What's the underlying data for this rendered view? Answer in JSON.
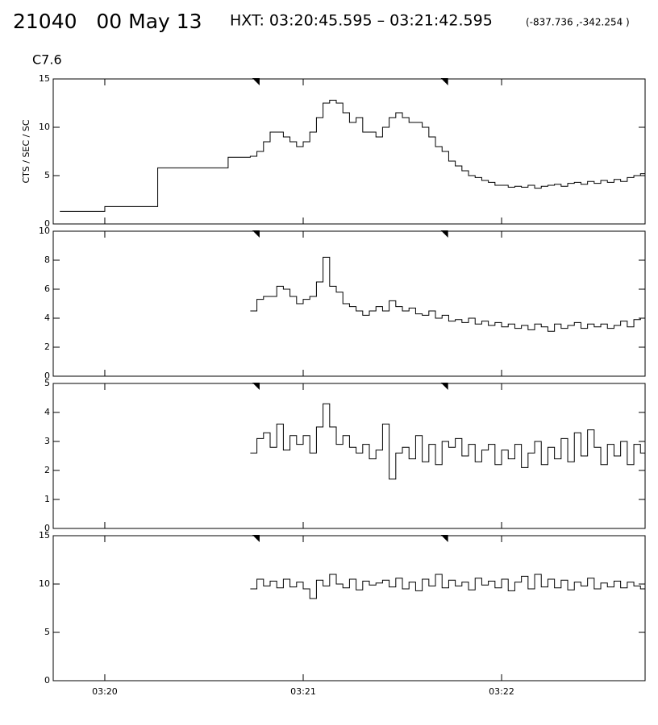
{
  "header": {
    "id_date": "21040   00 May 13",
    "range": "HXT: 03:20:45.595 – 03:21:42.595",
    "coords": "(-837.736 ,-342.254 )"
  },
  "chart_data": [
    {
      "type": "line",
      "step": true,
      "title": "C7.6",
      "y_label": "CTS / SEC / SC",
      "color": "#000000",
      "markers": [
        45.595,
        102.595
      ],
      "x": [
        -13.6,
        0,
        16,
        37.3,
        44,
        46,
        48,
        50,
        52,
        54,
        56,
        58,
        60,
        62,
        64,
        66,
        68,
        70,
        72,
        74,
        76,
        78,
        80,
        82,
        84,
        86,
        88,
        90,
        92,
        94,
        96,
        98,
        100,
        102,
        104,
        106,
        108,
        110,
        112,
        114,
        116,
        118,
        120,
        122,
        124,
        126,
        128,
        130,
        132,
        134,
        136,
        138,
        140,
        142,
        144,
        146,
        148,
        150,
        152,
        154,
        156,
        158,
        160,
        162
      ],
      "values": [
        1.3,
        1.8,
        5.8,
        6.9,
        7,
        7.5,
        8.5,
        9.5,
        9.5,
        9,
        8.5,
        8,
        8.5,
        9.5,
        11,
        12.5,
        12.8,
        12.5,
        11.5,
        10.5,
        11,
        9.5,
        9.5,
        9,
        10,
        11,
        11.5,
        11,
        10.5,
        10.5,
        10,
        9,
        8,
        7.5,
        6.5,
        6,
        5.5,
        5,
        4.8,
        4.5,
        4.3,
        4,
        4,
        3.8,
        3.9,
        3.8,
        4,
        3.7,
        3.9,
        4,
        4.1,
        3.9,
        4.2,
        4.3,
        4.1,
        4.4,
        4.2,
        4.5,
        4.3,
        4.6,
        4.4,
        4.8,
        5,
        5.2
      ],
      "ylim": [
        0,
        15
      ],
      "yticks": [
        0,
        5,
        10,
        15
      ]
    },
    {
      "type": "line",
      "step": true,
      "color": "#000000",
      "x": [
        44,
        46,
        48,
        50,
        52,
        54,
        56,
        58,
        60,
        62,
        64,
        66,
        68,
        70,
        72,
        74,
        76,
        78,
        80,
        82,
        84,
        86,
        88,
        90,
        92,
        94,
        96,
        98,
        100,
        102,
        104,
        106,
        108,
        110,
        112,
        114,
        116,
        118,
        120,
        122,
        124,
        126,
        128,
        130,
        132,
        134,
        136,
        138,
        140,
        142,
        144,
        146,
        148,
        150,
        152,
        154,
        156,
        158,
        160,
        162
      ],
      "values": [
        4.5,
        5.3,
        5.5,
        5.5,
        6.2,
        6,
        5.5,
        5,
        5.3,
        5.5,
        6.5,
        8.2,
        6.2,
        5.8,
        5,
        4.8,
        4.5,
        4.2,
        4.5,
        4.8,
        4.5,
        5.2,
        4.8,
        4.5,
        4.7,
        4.3,
        4.2,
        4.5,
        4,
        4.2,
        3.8,
        3.9,
        3.7,
        4,
        3.6,
        3.8,
        3.5,
        3.7,
        3.4,
        3.6,
        3.3,
        3.5,
        3.2,
        3.6,
        3.4,
        3.1,
        3.6,
        3.3,
        3.5,
        3.7,
        3.3,
        3.6,
        3.4,
        3.6,
        3.3,
        3.5,
        3.8,
        3.4,
        3.9,
        4
      ],
      "ylim": [
        0,
        10
      ],
      "yticks": [
        0,
        2,
        4,
        6,
        8,
        10
      ]
    },
    {
      "type": "line",
      "step": true,
      "color": "#000000",
      "x": [
        44,
        46,
        48,
        50,
        52,
        54,
        56,
        58,
        60,
        62,
        64,
        66,
        68,
        70,
        72,
        74,
        76,
        78,
        80,
        82,
        84,
        86,
        88,
        90,
        92,
        94,
        96,
        98,
        100,
        102,
        104,
        106,
        108,
        110,
        112,
        114,
        116,
        118,
        120,
        122,
        124,
        126,
        128,
        130,
        132,
        134,
        136,
        138,
        140,
        142,
        144,
        146,
        148,
        150,
        152,
        154,
        156,
        158,
        160,
        162
      ],
      "values": [
        2.6,
        3.1,
        3.3,
        2.8,
        3.6,
        2.7,
        3.2,
        2.9,
        3.2,
        2.6,
        3.5,
        4.3,
        3.5,
        2.9,
        3.2,
        2.8,
        2.6,
        2.9,
        2.4,
        2.7,
        3.6,
        1.7,
        2.6,
        2.8,
        2.4,
        3.2,
        2.3,
        2.9,
        2.2,
        3,
        2.8,
        3.1,
        2.5,
        2.9,
        2.3,
        2.7,
        2.9,
        2.2,
        2.7,
        2.4,
        2.9,
        2.1,
        2.6,
        3,
        2.2,
        2.8,
        2.4,
        3.1,
        2.3,
        3.3,
        2.5,
        3.4,
        2.8,
        2.2,
        2.9,
        2.5,
        3,
        2.2,
        2.9,
        2.6
      ],
      "ylim": [
        0,
        5
      ],
      "yticks": [
        0,
        1,
        2,
        3,
        4,
        5
      ]
    },
    {
      "type": "line",
      "step": true,
      "color": "#000000",
      "x": [
        44,
        46,
        48,
        50,
        52,
        54,
        56,
        58,
        60,
        62,
        64,
        66,
        68,
        70,
        72,
        74,
        76,
        78,
        80,
        82,
        84,
        86,
        88,
        90,
        92,
        94,
        96,
        98,
        100,
        102,
        104,
        106,
        108,
        110,
        112,
        114,
        116,
        118,
        120,
        122,
        124,
        126,
        128,
        130,
        132,
        134,
        136,
        138,
        140,
        142,
        144,
        146,
        148,
        150,
        152,
        154,
        156,
        158,
        160,
        162
      ],
      "values": [
        9.5,
        10.5,
        9.8,
        10.3,
        9.6,
        10.5,
        9.7,
        10.2,
        9.5,
        8.5,
        10.4,
        9.8,
        11,
        10,
        9.6,
        10.5,
        9.4,
        10.3,
        9.9,
        10.1,
        10.4,
        9.7,
        10.6,
        9.5,
        10.2,
        9.3,
        10.5,
        9.8,
        11,
        9.6,
        10.4,
        9.8,
        10.2,
        9.4,
        10.6,
        9.9,
        10.3,
        9.6,
        10.5,
        9.3,
        10.2,
        10.8,
        9.5,
        11,
        9.7,
        10.5,
        9.6,
        10.4,
        9.4,
        10.2,
        9.8,
        10.6,
        9.5,
        10.1,
        9.7,
        10.3,
        9.6,
        10.2,
        9.8,
        9.5
      ],
      "ylim": [
        0,
        15
      ],
      "yticks": [
        0,
        5,
        10,
        15
      ],
      "xlim": [
        -15.6,
        163.4
      ],
      "xticks": [
        {
          "value": 0,
          "label": "03:20"
        },
        {
          "value": 60,
          "label": "03:21"
        },
        {
          "value": 120,
          "label": "03:22"
        }
      ]
    }
  ]
}
